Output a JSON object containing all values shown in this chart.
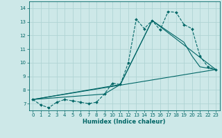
{
  "title": "",
  "xlabel": "Humidex (Indice chaleur)",
  "background_color": "#cde8e8",
  "grid_color": "#aacccc",
  "line_color": "#006666",
  "xlim": [
    -0.5,
    23.5
  ],
  "ylim": [
    6.5,
    14.5
  ],
  "yticks": [
    7,
    8,
    9,
    10,
    11,
    12,
    13,
    14
  ],
  "xticks": [
    0,
    1,
    2,
    3,
    4,
    5,
    6,
    7,
    8,
    9,
    10,
    11,
    12,
    13,
    14,
    15,
    16,
    17,
    18,
    19,
    20,
    21,
    22,
    23
  ],
  "series_dashed": {
    "x": [
      0,
      1,
      2,
      3,
      4,
      5,
      6,
      7,
      8,
      9,
      10,
      11,
      12,
      13,
      14,
      15,
      16,
      17,
      18,
      19,
      20,
      21,
      22,
      23
    ],
    "y": [
      7.3,
      6.9,
      6.7,
      7.1,
      7.3,
      7.2,
      7.1,
      7.0,
      7.1,
      7.7,
      8.5,
      8.4,
      10.0,
      13.2,
      12.5,
      13.1,
      12.4,
      13.75,
      13.7,
      12.8,
      12.5,
      10.5,
      9.7,
      9.5
    ]
  },
  "series_line1": {
    "x": [
      0,
      9,
      11,
      15,
      19,
      20,
      21,
      23
    ],
    "y": [
      7.3,
      7.7,
      8.4,
      13.1,
      11.5,
      10.5,
      9.7,
      9.5
    ]
  },
  "series_line2": {
    "x": [
      0,
      11,
      15,
      23
    ],
    "y": [
      7.3,
      8.4,
      13.1,
      9.5
    ]
  },
  "series_line3": {
    "x": [
      0,
      23
    ],
    "y": [
      7.3,
      9.5
    ]
  }
}
